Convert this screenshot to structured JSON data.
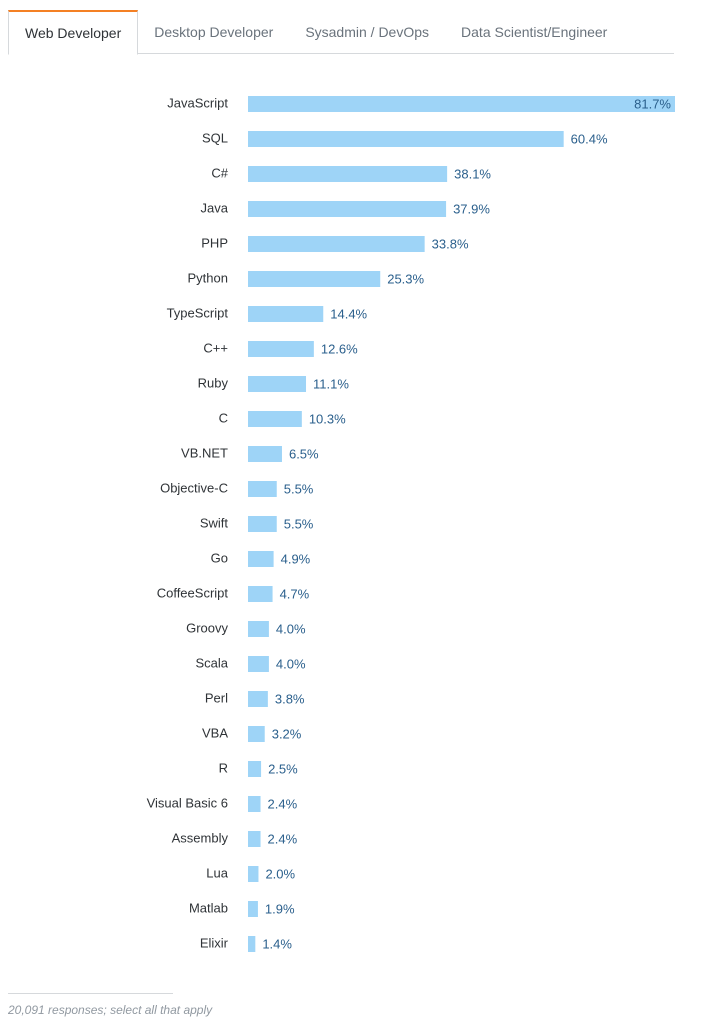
{
  "tabs": [
    {
      "label": "Web Developer",
      "active": true
    },
    {
      "label": "Desktop Developer",
      "active": false
    },
    {
      "label": "Sysadmin / DevOps",
      "active": false
    },
    {
      "label": "Data Scientist/Engineer",
      "active": false
    }
  ],
  "colors": {
    "bar": "#9ed4f7",
    "value_text": "#2a5f8c",
    "label_text": "#2f3337",
    "accent_tab": "#f48024"
  },
  "chart_data": {
    "type": "bar",
    "orientation": "horizontal",
    "categories": [
      "JavaScript",
      "SQL",
      "C#",
      "Java",
      "PHP",
      "Python",
      "TypeScript",
      "C++",
      "Ruby",
      "C",
      "VB.NET",
      "Objective-C",
      "Swift",
      "Go",
      "CoffeeScript",
      "Groovy",
      "Scala",
      "Perl",
      "VBA",
      "R",
      "Visual Basic 6",
      "Assembly",
      "Lua",
      "Matlab",
      "Elixir"
    ],
    "values": [
      81.7,
      60.4,
      38.1,
      37.9,
      33.8,
      25.3,
      14.4,
      12.6,
      11.1,
      10.3,
      6.5,
      5.5,
      5.5,
      4.9,
      4.7,
      4.0,
      4.0,
      3.8,
      3.2,
      2.5,
      2.4,
      2.4,
      2.0,
      1.9,
      1.4
    ],
    "value_labels": [
      "81.7%",
      "60.4%",
      "38.1%",
      "37.9%",
      "33.8%",
      "25.3%",
      "14.4%",
      "12.6%",
      "11.1%",
      "10.3%",
      "6.5%",
      "5.5%",
      "5.5%",
      "4.9%",
      "4.7%",
      "4.0%",
      "4.0%",
      "3.8%",
      "3.2%",
      "2.5%",
      "2.4%",
      "2.4%",
      "2.0%",
      "1.9%",
      "1.4%"
    ],
    "xlim": [
      0,
      81.7
    ],
    "grid": false,
    "title": "",
    "xlabel": "",
    "ylabel": ""
  },
  "footnote": "20,091 responses; select all that apply"
}
